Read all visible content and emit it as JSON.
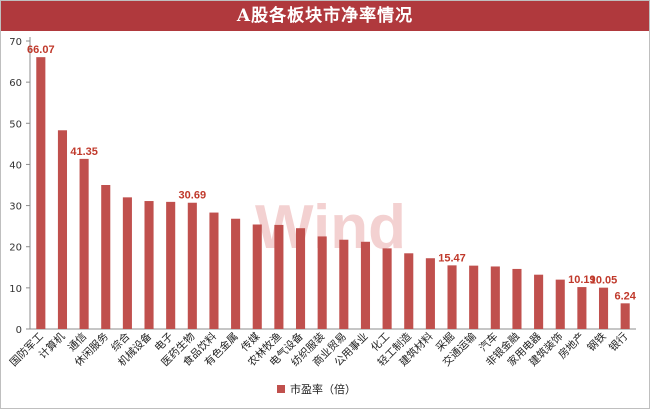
{
  "chart_data": {
    "type": "bar",
    "title": "A股各板块市净率情况",
    "legend_label": "市盈率（倍）",
    "legend_position": "bottom",
    "watermark": "Wind",
    "ylim": [
      0,
      70
    ],
    "yticks": [
      0,
      10,
      20,
      30,
      40,
      50,
      60,
      70
    ],
    "grid": false,
    "bar_color": "#c0504d",
    "label_color": "#c0392b",
    "categories": [
      "国防军工",
      "计算机",
      "通信",
      "休闲服务",
      "综合",
      "机械设备",
      "电子",
      "医药生物",
      "食品饮料",
      "有色金属",
      "传媒",
      "农林牧渔",
      "电气设备",
      "纺织服装",
      "商业贸易",
      "公用事业",
      "化工",
      "轻工制造",
      "建筑材料",
      "采掘",
      "交通运输",
      "汽车",
      "非银金融",
      "家用电器",
      "建筑装饰",
      "房地产",
      "钢铁",
      "银行"
    ],
    "values": [
      66.07,
      48.3,
      41.35,
      35.0,
      32.0,
      31.1,
      30.9,
      30.69,
      28.3,
      26.8,
      25.4,
      25.3,
      24.5,
      22.5,
      21.7,
      21.2,
      19.6,
      18.4,
      17.2,
      15.47,
      15.4,
      15.2,
      14.6,
      13.2,
      12.0,
      10.19,
      10.05,
      6.24
    ],
    "data_labels": [
      {
        "index": 0,
        "text": "66.07"
      },
      {
        "index": 2,
        "text": "41.35"
      },
      {
        "index": 7,
        "text": "30.69"
      },
      {
        "index": 19,
        "text": "15.47"
      },
      {
        "index": 25,
        "text": "10.19"
      },
      {
        "index": 26,
        "text": "10.05"
      },
      {
        "index": 27,
        "text": "6.24"
      }
    ]
  }
}
